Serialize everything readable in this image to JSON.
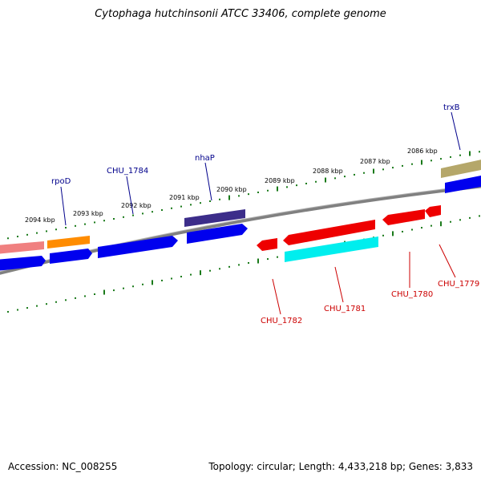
{
  "title": "Cytophaga hutchinsonii ATCC 33406, complete genome",
  "footer": {
    "accession": "Accession: NC_008255",
    "summary": "Topology: circular; Length: 4,433,218 bp; Genes: 3,833"
  },
  "scale_labels": [
    "2094 kbp",
    "2093 kbp",
    "2092 kbp",
    "2091 kbp",
    "2090 kbp",
    "2089 kbp",
    "2088 kbp",
    "2087 kbp",
    "2086 kbp"
  ],
  "gene_labels_top": [
    "rpoD",
    "CHU_1784",
    "nhaP",
    "trxB"
  ],
  "gene_labels_bottom": [
    "CHU_1782",
    "CHU_1781",
    "CHU_1780",
    "CHU_1779"
  ],
  "colors": {
    "blue": "#0000ee",
    "red": "#ee0000",
    "cyan": "#00eeee",
    "orange": "#ff8c00",
    "pink": "#f08080",
    "purple": "#3c2d8a",
    "khaki": "#b5a76a",
    "backbone": "#808080",
    "tick": "#1a7a1a",
    "top_label": "#00008b",
    "bottom_label": "#cc0000"
  }
}
